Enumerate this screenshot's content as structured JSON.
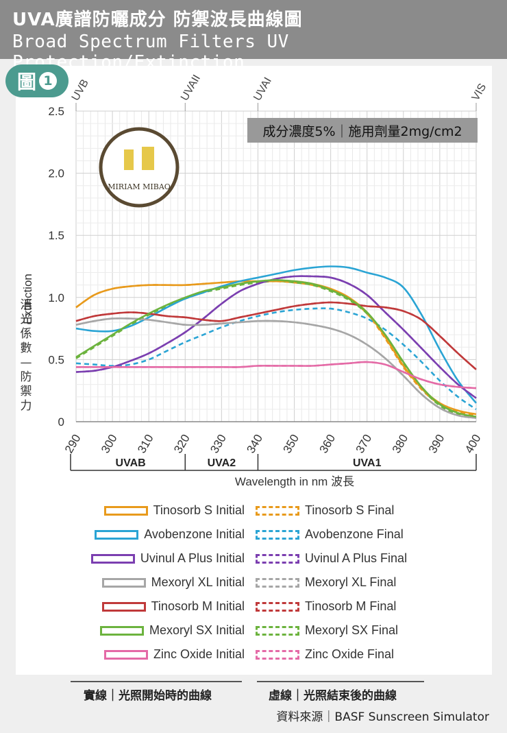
{
  "header": {
    "title_zh": "UVA廣譜防曬成分 防禦波長曲線圖",
    "title_en": "Broad Spectrum Filters UV Protection/Extinction"
  },
  "figure_badge": {
    "text": "圖",
    "number": "1"
  },
  "concentration_box": "成分濃度5%｜施用劑量2mg/cm2",
  "logo_text": "MIRIAM MIBAO",
  "colors": {
    "tinosorb_s": "#e89a1c",
    "avobenzone": "#2aa4d4",
    "uvinul": "#7b3fb0",
    "mexoryl_xl": "#a6a6a6",
    "tinosorb_m": "#c0393a",
    "mexoryl_sx": "#6cb33e",
    "zinc_oxide": "#e46aa6",
    "header_bg": "#8b8b8b",
    "badge": "#4c9b8f"
  },
  "chart_data": {
    "type": "line",
    "title": "",
    "xlabel": "Wavelength in nm  波長",
    "ylabel_en": "Extinction",
    "ylabel_zh": "消光係數—防禦力",
    "xlim": [
      290,
      400
    ],
    "ylim": [
      0,
      2.5
    ],
    "x_ticks": [
      "290",
      "300",
      "310",
      "320",
      "330",
      "340",
      "350",
      "360",
      "370",
      "380",
      "390",
      "400"
    ],
    "y_ticks": [
      "0",
      "0.5",
      "1.0",
      "1.5",
      "2.0",
      "2.5"
    ],
    "top_markers": [
      {
        "label": "UVB",
        "x": 290
      },
      {
        "label": "UVAII",
        "x": 320
      },
      {
        "label": "UVAI",
        "x": 340
      },
      {
        "label": "VIS",
        "x": 400
      }
    ],
    "bands": [
      {
        "label": "UVAB",
        "from": 290,
        "to": 320
      },
      {
        "label": "UVA2",
        "from": 320,
        "to": 340
      },
      {
        "label": "UVA1",
        "from": 340,
        "to": 400
      }
    ],
    "x": [
      290,
      295,
      300,
      305,
      310,
      315,
      320,
      325,
      330,
      335,
      340,
      345,
      350,
      355,
      360,
      365,
      370,
      375,
      380,
      385,
      390,
      395,
      400
    ],
    "series": [
      {
        "name": "Tinosorb S Initial",
        "color_key": "tinosorb_s",
        "dashed": false,
        "values": [
          0.92,
          1.02,
          1.07,
          1.09,
          1.1,
          1.1,
          1.1,
          1.11,
          1.12,
          1.13,
          1.13,
          1.13,
          1.13,
          1.11,
          1.07,
          1.0,
          0.88,
          0.68,
          0.45,
          0.27,
          0.15,
          0.09,
          0.06
        ]
      },
      {
        "name": "Tinosorb S Final",
        "color_key": "tinosorb_s",
        "dashed": true,
        "values": [
          0.92,
          1.02,
          1.07,
          1.09,
          1.1,
          1.1,
          1.1,
          1.11,
          1.12,
          1.13,
          1.13,
          1.13,
          1.12,
          1.1,
          1.06,
          0.99,
          0.87,
          0.67,
          0.44,
          0.26,
          0.14,
          0.08,
          0.05
        ]
      },
      {
        "name": "Avobenzone Initial",
        "color_key": "avobenzone",
        "dashed": false,
        "values": [
          0.75,
          0.73,
          0.73,
          0.77,
          0.84,
          0.92,
          0.99,
          1.04,
          1.09,
          1.13,
          1.16,
          1.19,
          1.22,
          1.24,
          1.25,
          1.24,
          1.2,
          1.16,
          1.08,
          0.86,
          0.58,
          0.33,
          0.15
        ]
      },
      {
        "name": "Avobenzone Final",
        "color_key": "avobenzone",
        "dashed": true,
        "values": [
          0.47,
          0.46,
          0.45,
          0.46,
          0.5,
          0.57,
          0.64,
          0.7,
          0.76,
          0.81,
          0.85,
          0.88,
          0.9,
          0.91,
          0.91,
          0.88,
          0.83,
          0.74,
          0.62,
          0.48,
          0.33,
          0.2,
          0.1
        ]
      },
      {
        "name": "Uvinul A Plus Initial",
        "color_key": "uvinul",
        "dashed": false,
        "values": [
          0.4,
          0.41,
          0.44,
          0.49,
          0.55,
          0.63,
          0.72,
          0.83,
          0.95,
          1.05,
          1.11,
          1.15,
          1.17,
          1.17,
          1.16,
          1.11,
          1.02,
          0.88,
          0.74,
          0.59,
          0.44,
          0.3,
          0.19
        ]
      },
      {
        "name": "Uvinul A Plus Final",
        "color_key": "uvinul",
        "dashed": true,
        "values": [
          0.4,
          0.41,
          0.44,
          0.49,
          0.55,
          0.63,
          0.72,
          0.83,
          0.95,
          1.05,
          1.11,
          1.15,
          1.17,
          1.17,
          1.16,
          1.11,
          1.02,
          0.88,
          0.74,
          0.59,
          0.44,
          0.3,
          0.19
        ]
      },
      {
        "name": "Mexoryl XL Initial",
        "color_key": "mexoryl_xl",
        "dashed": false,
        "values": [
          0.78,
          0.81,
          0.83,
          0.83,
          0.82,
          0.8,
          0.78,
          0.78,
          0.79,
          0.8,
          0.81,
          0.81,
          0.8,
          0.78,
          0.75,
          0.7,
          0.62,
          0.51,
          0.37,
          0.22,
          0.11,
          0.05,
          0.03
        ]
      },
      {
        "name": "Mexoryl XL Final",
        "color_key": "mexoryl_xl",
        "dashed": true,
        "values": [
          0.78,
          0.81,
          0.83,
          0.83,
          0.82,
          0.8,
          0.78,
          0.78,
          0.79,
          0.8,
          0.81,
          0.81,
          0.8,
          0.78,
          0.75,
          0.7,
          0.62,
          0.51,
          0.37,
          0.22,
          0.11,
          0.05,
          0.03
        ]
      },
      {
        "name": "Tinosorb M Initial",
        "color_key": "tinosorb_m",
        "dashed": false,
        "values": [
          0.81,
          0.85,
          0.87,
          0.88,
          0.87,
          0.85,
          0.84,
          0.82,
          0.81,
          0.84,
          0.87,
          0.9,
          0.93,
          0.95,
          0.96,
          0.95,
          0.93,
          0.92,
          0.89,
          0.82,
          0.69,
          0.55,
          0.42
        ]
      },
      {
        "name": "Tinosorb M Final",
        "color_key": "tinosorb_m",
        "dashed": true,
        "values": [
          0.81,
          0.85,
          0.87,
          0.88,
          0.87,
          0.85,
          0.84,
          0.82,
          0.81,
          0.84,
          0.87,
          0.9,
          0.93,
          0.95,
          0.96,
          0.95,
          0.93,
          0.92,
          0.89,
          0.82,
          0.69,
          0.55,
          0.42
        ]
      },
      {
        "name": "Mexoryl SX Initial",
        "color_key": "mexoryl_sx",
        "dashed": false,
        "values": [
          0.52,
          0.61,
          0.7,
          0.79,
          0.87,
          0.94,
          1.0,
          1.05,
          1.08,
          1.11,
          1.13,
          1.14,
          1.13,
          1.11,
          1.06,
          0.99,
          0.88,
          0.7,
          0.48,
          0.28,
          0.14,
          0.07,
          0.04
        ]
      },
      {
        "name": "Mexoryl SX Final",
        "color_key": "mexoryl_sx",
        "dashed": true,
        "values": [
          0.51,
          0.6,
          0.69,
          0.78,
          0.86,
          0.93,
          0.99,
          1.04,
          1.07,
          1.1,
          1.12,
          1.13,
          1.12,
          1.1,
          1.05,
          0.98,
          0.87,
          0.69,
          0.47,
          0.27,
          0.13,
          0.06,
          0.03
        ]
      },
      {
        "name": "Zinc Oxide Initial",
        "color_key": "zinc_oxide",
        "dashed": false,
        "values": [
          0.44,
          0.44,
          0.44,
          0.44,
          0.44,
          0.44,
          0.44,
          0.44,
          0.44,
          0.44,
          0.45,
          0.45,
          0.45,
          0.45,
          0.46,
          0.47,
          0.48,
          0.46,
          0.4,
          0.34,
          0.3,
          0.28,
          0.27
        ]
      },
      {
        "name": "Zinc Oxide Final",
        "color_key": "zinc_oxide",
        "dashed": true,
        "values": [
          0.44,
          0.44,
          0.44,
          0.44,
          0.44,
          0.44,
          0.44,
          0.44,
          0.44,
          0.44,
          0.45,
          0.45,
          0.45,
          0.45,
          0.46,
          0.47,
          0.48,
          0.46,
          0.4,
          0.34,
          0.3,
          0.28,
          0.27
        ]
      }
    ]
  },
  "legend": {
    "initial": [
      {
        "label": "Tinosorb S Initial",
        "color_key": "tinosorb_s"
      },
      {
        "label": "Avobenzone Initial",
        "color_key": "avobenzone"
      },
      {
        "label": "Uvinul A Plus Initial",
        "color_key": "uvinul"
      },
      {
        "label": "Mexoryl XL Initial",
        "color_key": "mexoryl_xl"
      },
      {
        "label": "Tinosorb M Initial",
        "color_key": "tinosorb_m"
      },
      {
        "label": "Mexoryl SX Initial",
        "color_key": "mexoryl_sx"
      },
      {
        "label": "Zinc Oxide Initial",
        "color_key": "zinc_oxide"
      }
    ],
    "final": [
      {
        "label": "Tinosorb S Final",
        "color_key": "tinosorb_s"
      },
      {
        "label": "Avobenzone Final",
        "color_key": "avobenzone"
      },
      {
        "label": "Uvinul A Plus Final",
        "color_key": "uvinul"
      },
      {
        "label": "Mexoryl XL Final",
        "color_key": "mexoryl_xl"
      },
      {
        "label": "Tinosorb M Final",
        "color_key": "tinosorb_m"
      },
      {
        "label": "Mexoryl SX Final",
        "color_key": "mexoryl_sx"
      },
      {
        "label": "Zinc Oxide Final",
        "color_key": "zinc_oxide"
      }
    ]
  },
  "footer": {
    "solid_label": "實線｜光照開始時的曲線",
    "dashed_label": "虛線｜光照結束後的曲線",
    "source": "資料來源｜BASF Sunscreen Simulator"
  }
}
